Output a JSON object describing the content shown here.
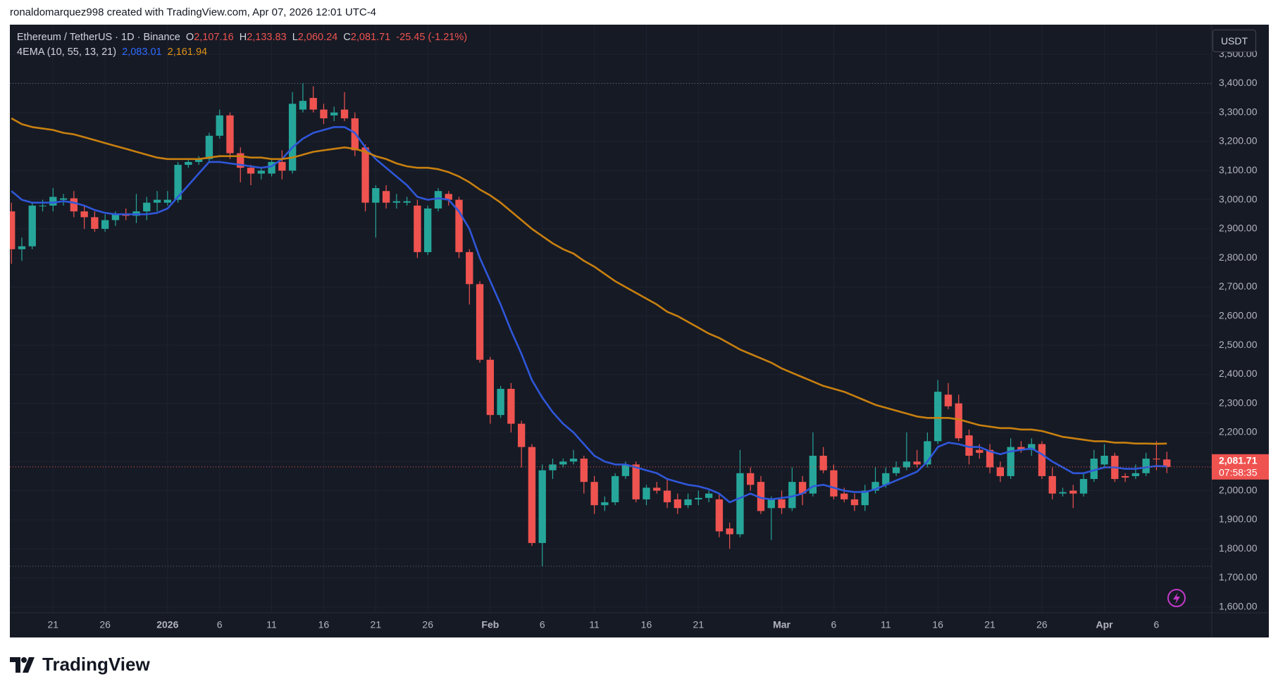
{
  "header": {
    "attribution": "ronaldomarquez998 created with TradingView.com, Apr 07, 2026 12:01 UTC-4",
    "symbol": "Ethereum / TetherUS · 1D · Binance",
    "o_label": "O",
    "open": "2,107.16",
    "h_label": "H",
    "high": "2,133.83",
    "l_label": "L",
    "low": "2,060.24",
    "c_label": "C",
    "close": "2,081.71",
    "change": "-25.45 (-1.21%)",
    "indicator": "4EMA (10, 55, 13, 21)",
    "currency": "USDT",
    "countdown": "07:58:35",
    "logo": "TradingView"
  },
  "chart_data": {
    "type": "candlestick",
    "up_color": "#26a69a",
    "down_color": "#ef5350",
    "grid": true,
    "ylim": [
      1580,
      3602
    ],
    "yticks": [
      {
        "value": 1600,
        "label": "1,600.00"
      },
      {
        "value": 1700,
        "label": "1,700.00"
      },
      {
        "value": 1800,
        "label": "1,800.00"
      },
      {
        "value": 1900,
        "label": "1,900.00"
      },
      {
        "value": 2000,
        "label": "2,000.00"
      },
      {
        "value": 2100,
        "label": "2,100.00"
      },
      {
        "value": 2200,
        "label": "2,200.00"
      },
      {
        "value": 2300,
        "label": "2,300.00"
      },
      {
        "value": 2400,
        "label": "2,400.00"
      },
      {
        "value": 2500,
        "label": "2,500.00"
      },
      {
        "value": 2600,
        "label": "2,600.00"
      },
      {
        "value": 2700,
        "label": "2,700.00"
      },
      {
        "value": 2800,
        "label": "2,800.00"
      },
      {
        "value": 2900,
        "label": "2,900.00"
      },
      {
        "value": 3000,
        "label": "3,000.00"
      },
      {
        "value": 3100,
        "label": "3,100.00"
      },
      {
        "value": 3200,
        "label": "3,200.00"
      },
      {
        "value": 3300,
        "label": "3,300.00"
      },
      {
        "value": 3400,
        "label": "3,400.00"
      },
      {
        "value": 3500,
        "label": "3,500.00"
      }
    ],
    "categories": [
      null,
      null,
      null,
      null,
      "21",
      null,
      null,
      null,
      null,
      "26",
      null,
      null,
      null,
      null,
      null,
      "2026",
      null,
      null,
      null,
      null,
      "6",
      null,
      null,
      null,
      null,
      "11",
      null,
      null,
      null,
      null,
      "16",
      null,
      null,
      null,
      null,
      "21",
      null,
      null,
      null,
      null,
      "26",
      null,
      null,
      null,
      null,
      null,
      "Feb",
      null,
      null,
      null,
      null,
      "6",
      null,
      null,
      null,
      null,
      "11",
      null,
      null,
      null,
      null,
      "16",
      null,
      null,
      null,
      null,
      "21",
      null,
      null,
      null,
      null,
      null,
      null,
      null,
      "Mar",
      null,
      null,
      null,
      null,
      "6",
      null,
      null,
      null,
      null,
      "11",
      null,
      null,
      null,
      null,
      "16",
      null,
      null,
      null,
      null,
      "21",
      null,
      null,
      null,
      null,
      "26",
      null,
      null,
      null,
      null,
      null,
      "Apr",
      null,
      null,
      null,
      null,
      "6",
      null
    ],
    "open": [
      2960,
      2830,
      2840,
      2980,
      2980,
      3000,
      3005,
      2960,
      2940,
      2900,
      2930,
      2950,
      2945,
      2960,
      2990,
      2990,
      3000,
      3120,
      3130,
      3140,
      3220,
      3290,
      3160,
      3110,
      3090,
      3090,
      3130,
      3100,
      3310,
      3350,
      3310,
      3290,
      3310,
      3280,
      3180,
      2990,
      3030,
      2990,
      2990,
      2980,
      2820,
      2970,
      3020,
      3000,
      2820,
      2710,
      2450,
      2260,
      2350,
      2230,
      2150,
      1820,
      2070,
      2090,
      2100,
      2110,
      2030,
      1950,
      1960,
      2050,
      2090,
      1970,
      2010,
      2000,
      1970,
      1950,
      1970,
      1975,
      1970,
      1870,
      1850,
      2060,
      2030,
      1940,
      1970,
      1940,
      2030,
      1990,
      2120,
      2070,
      1990,
      1970,
      1950,
      2000,
      2020,
      2060,
      2080,
      2100,
      2090,
      2170,
      2330,
      2300,
      2190,
      2140,
      2140,
      2080,
      2050,
      2150,
      2140,
      2160,
      2050,
      1990,
      2000,
      1990,
      2040,
      2090,
      2120,
      2050,
      2050,
      2060,
      2110,
      2107.16
    ],
    "high": [
      2990,
      2870,
      2990,
      3000,
      3040,
      3020,
      3030,
      2980,
      2960,
      2950,
      2960,
      2970,
      3020,
      3010,
      3030,
      3030,
      3130,
      3140,
      3150,
      3230,
      3310,
      3300,
      3180,
      3120,
      3110,
      3140,
      3170,
      3370,
      3400,
      3390,
      3330,
      3320,
      3370,
      3300,
      3190,
      3050,
      3050,
      3020,
      3010,
      3000,
      2980,
      3040,
      3030,
      3010,
      2830,
      2720,
      2460,
      2360,
      2370,
      2240,
      2160,
      2090,
      2110,
      2110,
      2140,
      2120,
      2050,
      1980,
      2060,
      2100,
      2100,
      2020,
      2030,
      2040,
      1990,
      1990,
      2000,
      2000,
      1990,
      1890,
      2140,
      2080,
      2050,
      1980,
      2000,
      2080,
      2050,
      2200,
      2150,
      2090,
      2010,
      1990,
      2020,
      2080,
      2080,
      2100,
      2200,
      2140,
      2200,
      2380,
      2370,
      2330,
      2210,
      2160,
      2160,
      2100,
      2180,
      2170,
      2180,
      2170,
      2080,
      2010,
      2020,
      2060,
      2140,
      2160,
      2130,
      2060,
      2090,
      2130,
      2170,
      2133.83
    ],
    "low": [
      2780,
      2790,
      2830,
      2960,
      2960,
      2980,
      2940,
      2900,
      2890,
      2890,
      2910,
      2930,
      2920,
      2930,
      2960,
      2980,
      2990,
      3110,
      3120,
      3130,
      3210,
      3140,
      3060,
      3050,
      3070,
      3080,
      3070,
      3090,
      3300,
      3300,
      3260,
      3270,
      3270,
      3150,
      2960,
      2870,
      2970,
      2970,
      2980,
      2800,
      2810,
      2960,
      2980,
      2800,
      2640,
      2440,
      2230,
      2250,
      2200,
      2080,
      1810,
      1740,
      2040,
      2080,
      2090,
      1990,
      1920,
      1930,
      1950,
      2040,
      1960,
      1950,
      1990,
      1940,
      1920,
      1940,
      1950,
      1960,
      1840,
      1800,
      1840,
      2000,
      1920,
      1830,
      1920,
      1930,
      1950,
      1980,
      2060,
      1970,
      1960,
      1930,
      1930,
      1990,
      2010,
      2050,
      2070,
      2080,
      2080,
      2160,
      2280,
      2170,
      2090,
      2110,
      2060,
      2030,
      2040,
      2130,
      2120,
      2040,
      1970,
      1980,
      1940,
      1980,
      2030,
      2080,
      2030,
      2030,
      2040,
      2050,
      2070,
      2060.24
    ],
    "close": [
      2830,
      2840,
      2980,
      2980,
      3010,
      3005,
      2960,
      2940,
      2900,
      2930,
      2950,
      2945,
      2960,
      2990,
      3000,
      3000,
      3120,
      3130,
      3140,
      3220,
      3290,
      3160,
      3110,
      3090,
      3100,
      3130,
      3100,
      3330,
      3340,
      3310,
      3280,
      3300,
      3280,
      3170,
      2990,
      3040,
      2990,
      2995,
      2995,
      2820,
      2970,
      3030,
      3000,
      2820,
      2710,
      2450,
      2260,
      2350,
      2230,
      2150,
      1820,
      2070,
      2090,
      2100,
      2110,
      2030,
      1950,
      1960,
      2050,
      2090,
      1970,
      2010,
      2000,
      1960,
      1940,
      1970,
      1975,
      1990,
      1860,
      1850,
      2060,
      2020,
      1930,
      1970,
      1940,
      2030,
      1990,
      2120,
      2070,
      1980,
      1970,
      1950,
      2000,
      2030,
      2060,
      2080,
      2100,
      2090,
      2170,
      2340,
      2290,
      2180,
      2120,
      2130,
      2080,
      2050,
      2150,
      2140,
      2160,
      2050,
      1990,
      1995,
      1990,
      2040,
      2110,
      2120,
      2040,
      2045,
      2060,
      2110,
      2107.16,
      2081.71
    ],
    "lines": [
      {
        "color": "#2f57d9",
        "last_label": "2,083.01",
        "values": [
          3030,
          3000,
          2990,
          2990,
          2990,
          2995,
          2990,
          2980,
          2965,
          2955,
          2950,
          2950,
          2950,
          2950,
          2955,
          2970,
          3010,
          3050,
          3090,
          3130,
          3130,
          3125,
          3120,
          3115,
          3110,
          3115,
          3140,
          3180,
          3210,
          3230,
          3240,
          3250,
          3250,
          3230,
          3180,
          3140,
          3110,
          3080,
          3050,
          3010,
          3000,
          3005,
          3000,
          2960,
          2900,
          2800,
          2720,
          2640,
          2550,
          2470,
          2380,
          2320,
          2270,
          2230,
          2200,
          2160,
          2120,
          2100,
          2090,
          2090,
          2080,
          2070,
          2060,
          2040,
          2030,
          2020,
          2015,
          2005,
          1990,
          1960,
          1975,
          1990,
          1975,
          1970,
          1975,
          1980,
          1990,
          2015,
          2020,
          2010,
          2000,
          1995,
          1995,
          2005,
          2020,
          2035,
          2050,
          2065,
          2100,
          2150,
          2165,
          2160,
          2150,
          2150,
          2135,
          2125,
          2135,
          2140,
          2145,
          2125,
          2100,
          2080,
          2060,
          2060,
          2070,
          2080,
          2080,
          2075,
          2075,
          2080,
          2085,
          2083.01
        ]
      },
      {
        "color": "#c8800f",
        "last_label": "2,161.94",
        "values": [
          3280,
          3260,
          3250,
          3245,
          3240,
          3230,
          3225,
          3215,
          3205,
          3195,
          3185,
          3175,
          3165,
          3155,
          3145,
          3140,
          3140,
          3140,
          3140,
          3145,
          3150,
          3150,
          3150,
          3145,
          3145,
          3140,
          3140,
          3145,
          3155,
          3165,
          3170,
          3175,
          3180,
          3175,
          3165,
          3150,
          3140,
          3125,
          3115,
          3110,
          3110,
          3105,
          3095,
          3080,
          3060,
          3035,
          3015,
          2990,
          2960,
          2930,
          2900,
          2875,
          2850,
          2830,
          2815,
          2790,
          2770,
          2745,
          2720,
          2700,
          2680,
          2660,
          2640,
          2615,
          2600,
          2580,
          2560,
          2540,
          2525,
          2505,
          2485,
          2470,
          2455,
          2440,
          2420,
          2405,
          2390,
          2375,
          2360,
          2350,
          2340,
          2325,
          2310,
          2295,
          2285,
          2275,
          2265,
          2255,
          2250,
          2250,
          2250,
          2245,
          2235,
          2225,
          2220,
          2215,
          2215,
          2210,
          2210,
          2205,
          2195,
          2185,
          2180,
          2175,
          2170,
          2170,
          2165,
          2165,
          2162,
          2162,
          2161,
          2161.94
        ]
      }
    ]
  }
}
